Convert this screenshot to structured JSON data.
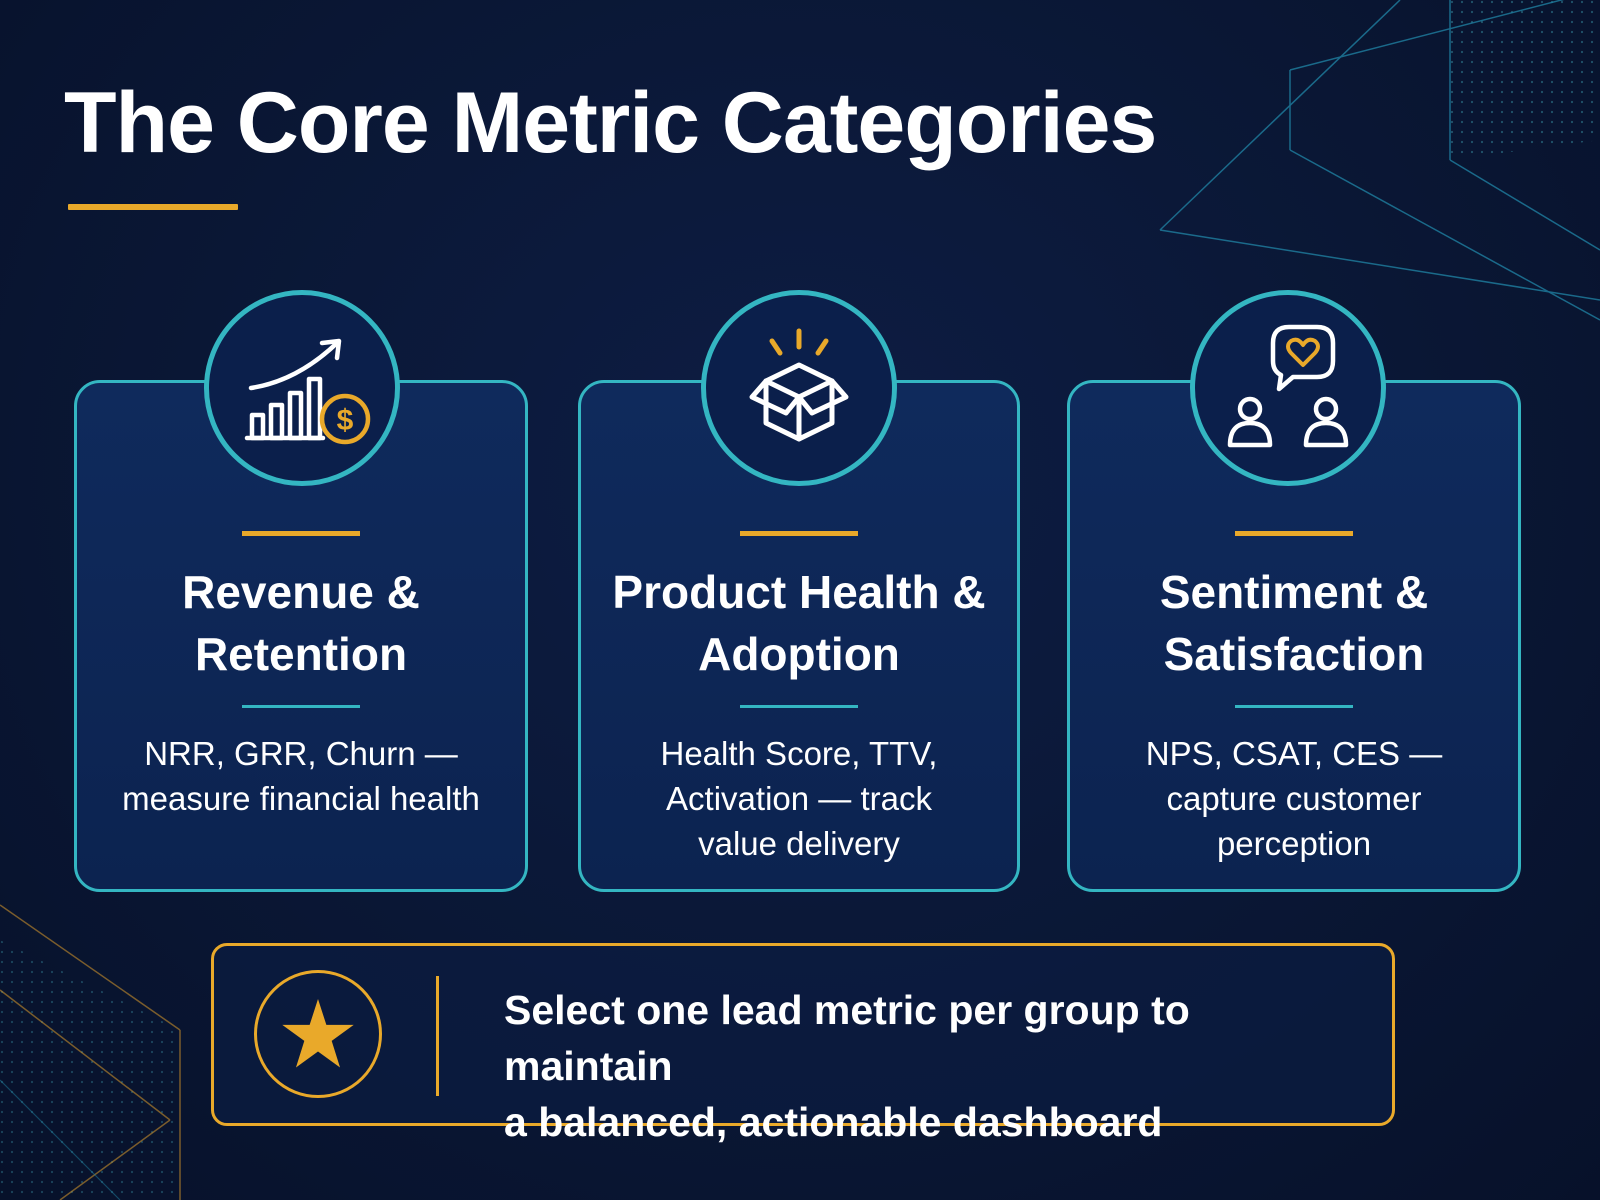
{
  "title": "The Core Metric Categories",
  "colors": {
    "background": "#0a1735",
    "accent_gold": "#e9a92a",
    "accent_teal": "#34b6c2",
    "card_fill": "#0f2a5c",
    "text": "#ffffff"
  },
  "cards": [
    {
      "icon": "growth-chart-dollar-icon",
      "title_line1": "Revenue &",
      "title_line2": "Retention",
      "desc_line1": "NRR, GRR, Churn —",
      "desc_line2": "measure financial health",
      "desc_line3": ""
    },
    {
      "icon": "open-box-icon",
      "title_line1": "Product Health &",
      "title_line2": "Adoption",
      "desc_line1": "Health Score, TTV,",
      "desc_line2": "Activation — track",
      "desc_line3": "value delivery"
    },
    {
      "icon": "people-heart-chat-icon",
      "title_line1": "Sentiment &",
      "title_line2": "Satisfaction",
      "desc_line1": "NPS, CSAT, CES —",
      "desc_line2": "capture customer",
      "desc_line3": "perception"
    }
  ],
  "tip": {
    "icon": "star-icon",
    "line1": "Select one lead metric per group to maintain",
    "line2": "a balanced, actionable dashboard"
  }
}
